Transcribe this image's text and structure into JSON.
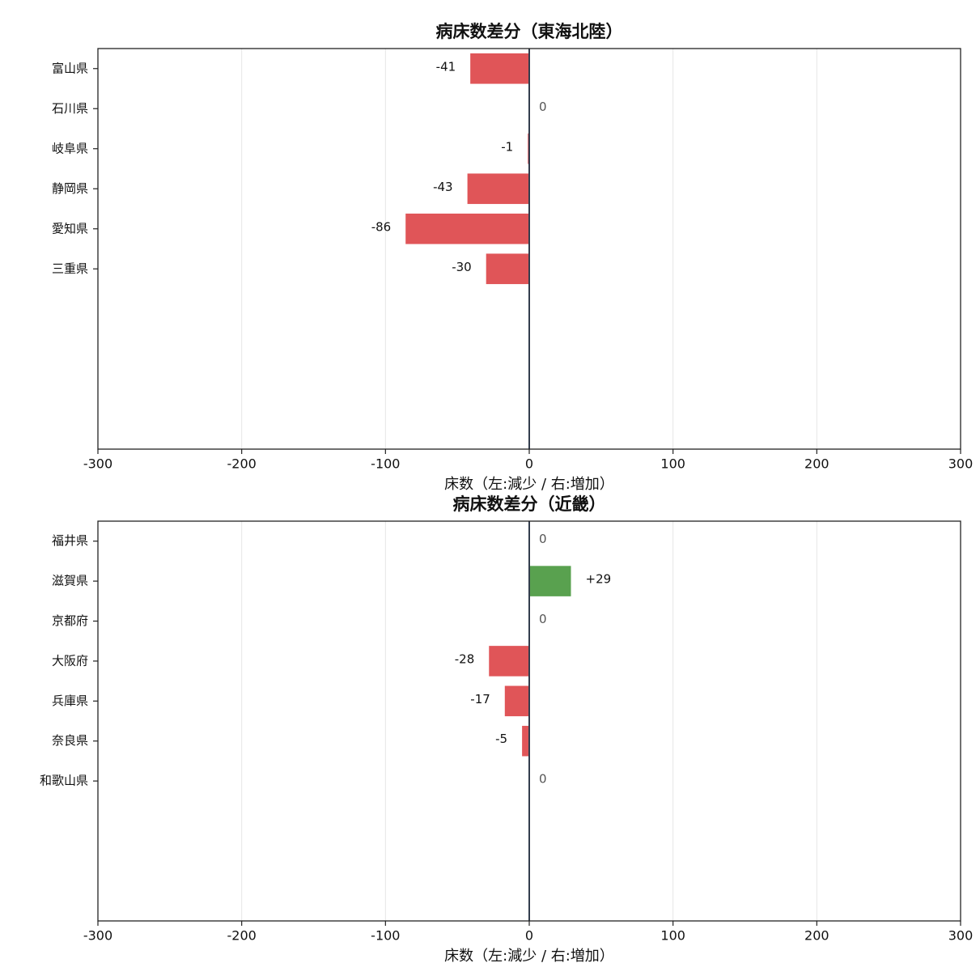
{
  "chart_data": [
    {
      "type": "barh",
      "title": "病床数差分（東海北陸）",
      "xlabel": "床数（左:減少 / 右:増加）",
      "categories": [
        "富山県",
        "石川県",
        "岐阜県",
        "静岡県",
        "愛知県",
        "三重県"
      ],
      "values": [
        -41,
        0,
        -1,
        -43,
        -86,
        -30
      ],
      "negative_color": "#e05558",
      "positive_color": "#59a14f",
      "xlim": [
        -300,
        300
      ],
      "xticks": [
        -300,
        -200,
        -100,
        0,
        100,
        200,
        300
      ],
      "grid": true
    },
    {
      "type": "barh",
      "title": "病床数差分（近畿）",
      "xlabel": "床数（左:減少 / 右:増加）",
      "categories": [
        "福井県",
        "滋賀県",
        "京都府",
        "大阪府",
        "兵庫県",
        "奈良県",
        "和歌山県"
      ],
      "values": [
        0,
        29,
        0,
        -28,
        -17,
        -5,
        0
      ],
      "value_labels": [
        "0",
        "+29",
        "0",
        "-28",
        "-17",
        "-5",
        "0"
      ],
      "negative_color": "#e05558",
      "positive_color": "#59a14f",
      "xlim": [
        -300,
        300
      ],
      "xticks": [
        -300,
        -200,
        -100,
        0,
        100,
        200,
        300
      ],
      "grid": true
    }
  ]
}
